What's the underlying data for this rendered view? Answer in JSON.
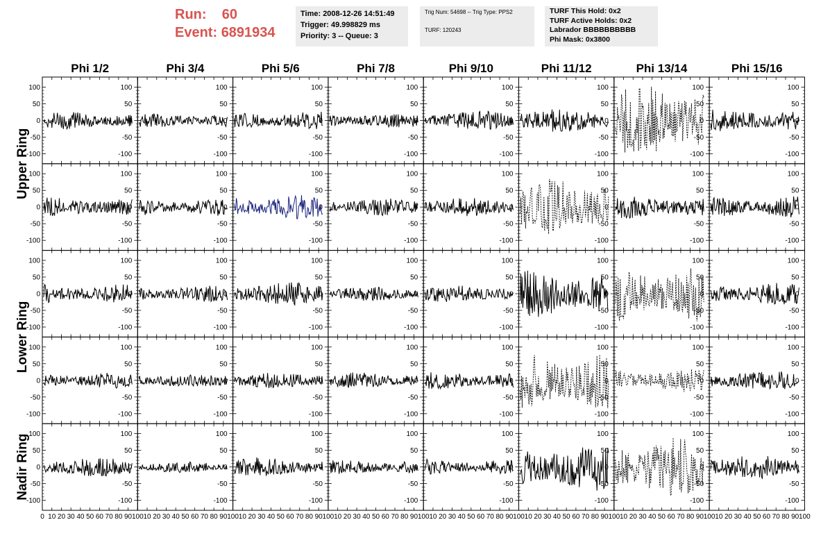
{
  "header": {
    "run_label": "Run:",
    "run_value": "60",
    "event_label": "Event:",
    "event_value": "6891934",
    "time": "Time: 2008-12-26 14:51:49",
    "trigger": "Trigger: 49.998829 ms",
    "priority": "Priority: 3 -- Queue: 3",
    "trig_num": "Trig Num: 54698 -- Trig Type: PPS2",
    "turf": "TURF: 120243",
    "turf_this_hold": "TURF This Hold: 0x2",
    "turf_active_holds": "TURF Active Holds: 0x2",
    "labrador": "Labrador BBBBBBBBBB",
    "phi_mask": "Phi Mask: 0x3800"
  },
  "colors": {
    "accent": "#d9534f",
    "info_bg": "#ececec",
    "trace": "#000000",
    "highlight_trace": "#1a237e"
  },
  "chart_data": {
    "type": "line",
    "columns": [
      "Phi 1/2",
      "Phi 3/4",
      "Phi 5/6",
      "Phi 7/8",
      "Phi 9/10",
      "Phi 11/12",
      "Phi 13/14",
      "Phi 15/16"
    ],
    "ring_labels": [
      {
        "label": "Upper Ring",
        "rows": [
          0,
          1
        ]
      },
      {
        "label": "Lower Ring",
        "rows": [
          2,
          3
        ]
      },
      {
        "label": "Nadir Ring",
        "rows": [
          4
        ]
      }
    ],
    "xlim": [
      0,
      100
    ],
    "ylim": [
      -120,
      120
    ],
    "yticks": [
      -100,
      -50,
      0,
      50,
      100
    ],
    "xtick_labels": [
      "0",
      "10",
      "20",
      "30",
      "40",
      "50",
      "60",
      "70",
      "80",
      "90",
      "100"
    ],
    "amplitude_grid": [
      [
        22,
        18,
        22,
        18,
        24,
        30,
        95,
        30
      ],
      [
        24,
        22,
        30,
        22,
        24,
        75,
        28,
        28
      ],
      [
        24,
        20,
        30,
        18,
        22,
        60,
        70,
        28
      ],
      [
        20,
        18,
        20,
        20,
        22,
        75,
        30,
        26
      ],
      [
        24,
        14,
        24,
        18,
        20,
        60,
        75,
        30
      ]
    ],
    "dashed_panels": [
      [
        0,
        6
      ],
      [
        1,
        5
      ],
      [
        2,
        6
      ],
      [
        3,
        5
      ],
      [
        3,
        6
      ],
      [
        4,
        6
      ]
    ],
    "highlighted_panel": [
      1,
      2
    ]
  }
}
